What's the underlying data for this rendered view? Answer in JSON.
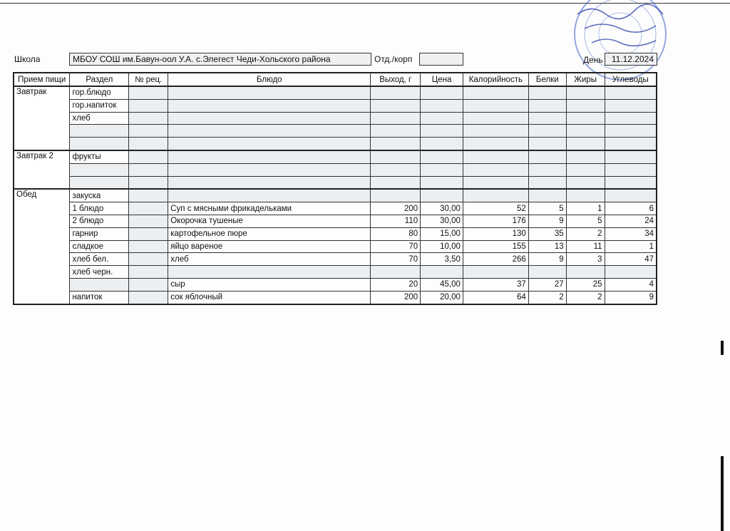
{
  "header": {
    "school_label": "Школа",
    "school_value": "МБОУ СОШ им.Бавун-оол У.А. с.Элегест Чеди-Хольского района",
    "dept_label": "Отд./корп",
    "dept_value": "",
    "day_label": "День",
    "day_value": "11.12.2024"
  },
  "columns": [
    "Прием пищи",
    "Раздел",
    "№ рец.",
    "Блюдо",
    "Выход, г",
    "Цена",
    "Калорийность",
    "Белки",
    "Жиры",
    "Углеводы"
  ],
  "meals": [
    {
      "name": "Завтрак",
      "rows": [
        {
          "section": "гор.блюдо",
          "recipe": "",
          "dish": "",
          "yield": "",
          "price": "",
          "kcal": "",
          "protein": "",
          "fat": "",
          "carbs": ""
        },
        {
          "section": "гор.напиток",
          "recipe": "",
          "dish": "",
          "yield": "",
          "price": "",
          "kcal": "",
          "protein": "",
          "fat": "",
          "carbs": ""
        },
        {
          "section": "хлеб",
          "recipe": "",
          "dish": "",
          "yield": "",
          "price": "",
          "kcal": "",
          "protein": "",
          "fat": "",
          "carbs": ""
        },
        {
          "section": "",
          "recipe": "",
          "dish": "",
          "yield": "",
          "price": "",
          "kcal": "",
          "protein": "",
          "fat": "",
          "carbs": ""
        },
        {
          "section": "",
          "recipe": "",
          "dish": "",
          "yield": "",
          "price": "",
          "kcal": "",
          "protein": "",
          "fat": "",
          "carbs": ""
        }
      ]
    },
    {
      "name": "Завтрак 2",
      "rows": [
        {
          "section": "фрукты",
          "recipe": "",
          "dish": "",
          "yield": "",
          "price": "",
          "kcal": "",
          "protein": "",
          "fat": "",
          "carbs": ""
        },
        {
          "section": "",
          "recipe": "",
          "dish": "",
          "yield": "",
          "price": "",
          "kcal": "",
          "protein": "",
          "fat": "",
          "carbs": ""
        },
        {
          "section": "",
          "recipe": "",
          "dish": "",
          "yield": "",
          "price": "",
          "kcal": "",
          "protein": "",
          "fat": "",
          "carbs": ""
        }
      ]
    },
    {
      "name": "Обед",
      "rows": [
        {
          "section": "закуска",
          "recipe": "",
          "dish": "",
          "yield": "",
          "price": "",
          "kcal": "",
          "protein": "",
          "fat": "",
          "carbs": ""
        },
        {
          "section": "1 блюдо",
          "recipe": "",
          "dish": "Суп с мясными фрикадельками",
          "yield": "200",
          "price": "30,00",
          "kcal": "52",
          "protein": "5",
          "fat": "1",
          "carbs": "6"
        },
        {
          "section": "2 блюдо",
          "recipe": "",
          "dish": "Окорочка тушеные",
          "yield": "110",
          "price": "30,00",
          "kcal": "176",
          "protein": "9",
          "fat": "5",
          "carbs": "24"
        },
        {
          "section": "гарнир",
          "recipe": "",
          "dish": "картофельное пюре",
          "yield": "80",
          "price": "15,00",
          "kcal": "130",
          "protein": "35",
          "fat": "2",
          "carbs": "34"
        },
        {
          "section": "сладкое",
          "recipe": "",
          "dish": "яйцо вареное",
          "yield": "70",
          "price": "10,00",
          "kcal": "155",
          "protein": "13",
          "fat": "11",
          "carbs": "1"
        },
        {
          "section": "хлеб бел.",
          "recipe": "",
          "dish": "хлеб",
          "yield": "70",
          "price": "3,50",
          "kcal": "266",
          "protein": "9",
          "fat": "3",
          "carbs": "47"
        },
        {
          "section": "хлеб черн.",
          "recipe": "",
          "dish": "",
          "yield": "",
          "price": "",
          "kcal": "",
          "protein": "",
          "fat": "",
          "carbs": ""
        },
        {
          "section": "",
          "recipe": "",
          "dish": "сыр",
          "yield": "20",
          "price": "45,00",
          "kcal": "37",
          "protein": "27",
          "fat": "25",
          "carbs": "4"
        },
        {
          "section": "напиток",
          "recipe": "",
          "dish": "сок яблочный",
          "yield": "200",
          "price": "20,00",
          "kcal": "64",
          "protein": "2",
          "fat": "2",
          "carbs": "9"
        }
      ]
    }
  ],
  "stamp_color": "#3a5fc8"
}
